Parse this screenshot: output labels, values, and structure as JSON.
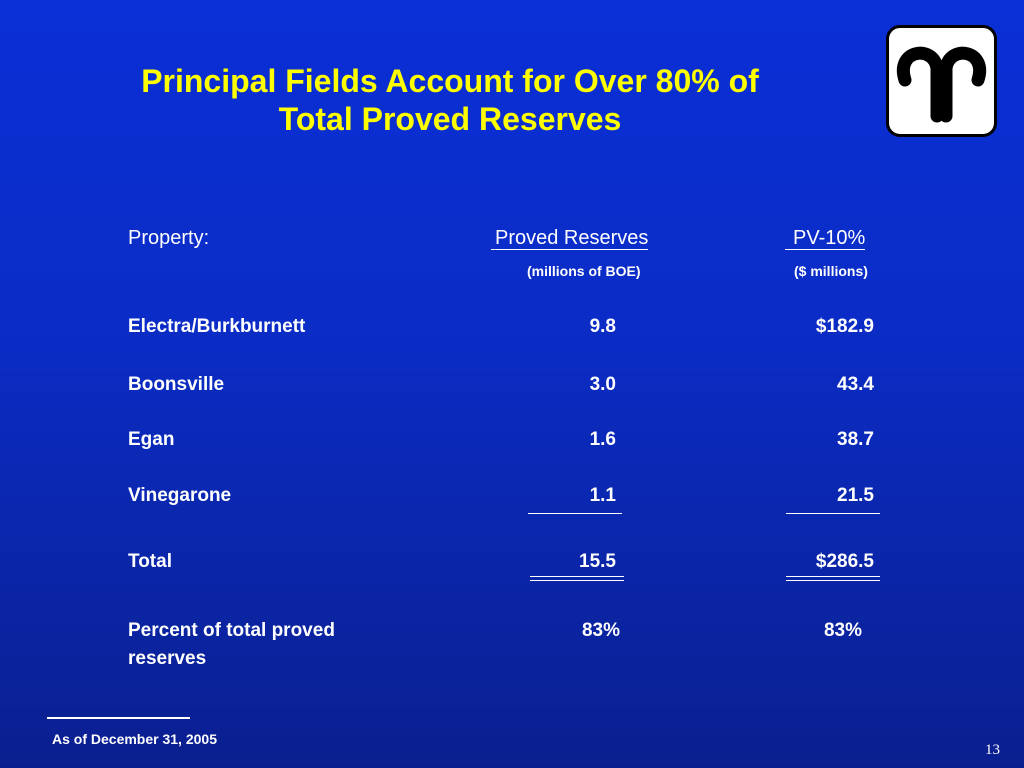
{
  "slide": {
    "title_line1": "Principal Fields Account for Over 80% of",
    "title_line2": "Total Proved Reserves",
    "page_number": "13"
  },
  "logo": {
    "icon": "company-logo-icon"
  },
  "table": {
    "headers": {
      "property": "Property:",
      "reserves": "Proved Reserves",
      "reserves_unit": "(millions of BOE)",
      "pv10": "PV-10%",
      "pv10_unit": "($ millions)"
    },
    "rows": [
      {
        "property": "Electra/Burkburnett",
        "reserves": "9.8",
        "pv10": "$182.9"
      },
      {
        "property": "Boonsville",
        "reserves": "3.0",
        "pv10": "43.4"
      },
      {
        "property": "Egan",
        "reserves": "1.6",
        "pv10": "38.7"
      },
      {
        "property": "Vinegarone",
        "reserves": "1.1",
        "pv10": "21.5"
      }
    ],
    "total": {
      "label": "Total",
      "reserves": "15.5",
      "pv10": "$286.5"
    },
    "percent": {
      "label_line1": "Percent of total proved",
      "label_line2": "reserves",
      "reserves": "83%",
      "pv10": "83%"
    }
  },
  "footnote": "As of December 31, 2005",
  "colors": {
    "background": "#0b2cc4",
    "title": "#ffff00",
    "text": "#ffffff"
  }
}
